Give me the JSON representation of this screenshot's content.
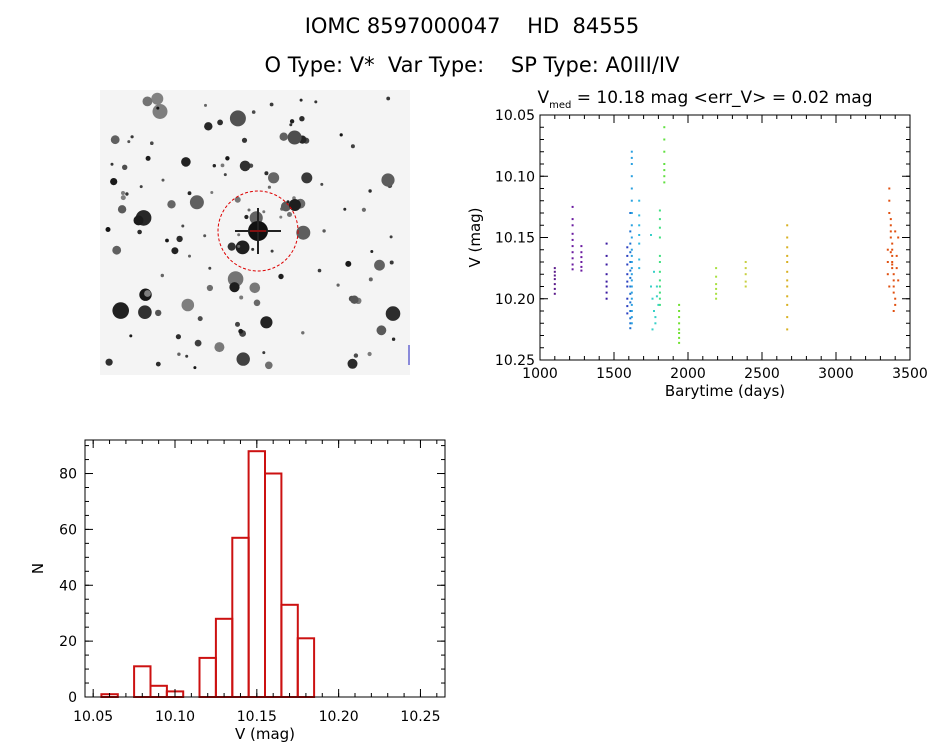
{
  "header": {
    "title_line1": "IOMC 8597000047    HD  84555",
    "title_line2": "O Type: V*  Var Type:    SP Type: A0III/IV"
  },
  "colors": {
    "hist_bar": "#cc1111",
    "aperture_circle": "#dd0000",
    "sky_background": "#ffffff"
  },
  "sky_image": {
    "type": "finder-chart",
    "description_label": "",
    "aperture": "circle"
  },
  "chart_data": [
    {
      "id": "light-curve",
      "type": "scatter",
      "title_prefix": "V",
      "title_subscript": "med",
      "title_rest": " = 10.18 mag <err_V> = 0.02 mag",
      "xlabel": "Barytime (days)",
      "ylabel": "V (mag)",
      "xlim": [
        1000,
        3500
      ],
      "ylim": [
        10.25,
        10.05
      ],
      "y_inverted": true,
      "xticks": [
        1000,
        1500,
        2000,
        2500,
        3000,
        3500
      ],
      "yticks": [
        10.05,
        10.1,
        10.15,
        10.2,
        10.25
      ],
      "ytick_labels": [
        "10.05",
        "10.10",
        "10.15",
        "10.20",
        "10.25"
      ],
      "series": [
        {
          "color": "#5a1a8a",
          "x": [
            1100,
            1100,
            1100,
            1100,
            1100,
            1100,
            1100
          ],
          "y": [
            10.175,
            10.178,
            10.181,
            10.184,
            10.188,
            10.192,
            10.196
          ]
        },
        {
          "color": "#6a1aa0",
          "x": [
            1220,
            1220,
            1220,
            1220,
            1220,
            1220,
            1220,
            1220,
            1220,
            1220
          ],
          "y": [
            10.125,
            10.135,
            10.14,
            10.147,
            10.152,
            10.157,
            10.162,
            10.167,
            10.172,
            10.176
          ]
        },
        {
          "color": "#6a1aa0",
          "x": [
            1280,
            1280,
            1280,
            1280,
            1280,
            1280
          ],
          "y": [
            10.157,
            10.162,
            10.166,
            10.17,
            10.174,
            10.177
          ]
        },
        {
          "color": "#3a1aa0",
          "x": [
            1450,
            1450,
            1450,
            1450,
            1450,
            1450,
            1450,
            1450
          ],
          "y": [
            10.155,
            10.165,
            10.172,
            10.18,
            10.186,
            10.19,
            10.195,
            10.2
          ]
        },
        {
          "color": "#2a40c0",
          "x": [
            1590,
            1590,
            1590,
            1590,
            1590,
            1590,
            1590,
            1590,
            1590
          ],
          "y": [
            10.158,
            10.165,
            10.172,
            10.18,
            10.186,
            10.19,
            10.2,
            10.206,
            10.212
          ]
        },
        {
          "color": "#1a70d0",
          "x": [
            1610,
            1610,
            1610,
            1610,
            1610,
            1610,
            1610,
            1610,
            1610,
            1610,
            1610,
            1610,
            1610,
            1610
          ],
          "y": [
            10.13,
            10.145,
            10.155,
            10.162,
            10.17,
            10.177,
            10.183,
            10.19,
            10.196,
            10.203,
            10.21,
            10.216,
            10.22,
            10.224
          ]
        },
        {
          "color": "#2aa0e0",
          "x": [
            1620,
            1620,
            1620,
            1620,
            1620,
            1620,
            1620,
            1620,
            1620,
            1620,
            1620,
            1620,
            1620,
            1620,
            1620,
            1620,
            1620,
            1620,
            1620,
            1620,
            1620,
            1620
          ],
          "y": [
            10.08,
            10.085,
            10.09,
            10.1,
            10.11,
            10.12,
            10.13,
            10.14,
            10.15,
            10.16,
            10.165,
            10.17,
            10.175,
            10.18,
            10.185,
            10.19,
            10.195,
            10.2,
            10.205,
            10.21,
            10.215,
            10.22
          ]
        },
        {
          "color": "#30b8e0",
          "x": [
            1670,
            1670,
            1670,
            1670,
            1670,
            1670,
            1670
          ],
          "y": [
            10.12,
            10.132,
            10.14,
            10.148,
            10.155,
            10.168,
            10.175
          ]
        },
        {
          "color": "#38d0c8",
          "x": [
            1750,
            1750,
            1760,
            1770,
            1780,
            1780,
            1790,
            1790,
            1800,
            1760,
            1770
          ],
          "y": [
            10.148,
            10.19,
            10.2,
            10.21,
            10.215,
            10.22,
            10.198,
            10.19,
            10.205,
            10.225,
            10.178
          ]
        },
        {
          "color": "#40e080",
          "x": [
            1810,
            1810,
            1810,
            1810,
            1810,
            1810,
            1810,
            1810,
            1810,
            1810,
            1810,
            1810
          ],
          "y": [
            10.128,
            10.135,
            10.142,
            10.15,
            10.165,
            10.17,
            10.178,
            10.185,
            10.19,
            10.195,
            10.2,
            10.205
          ]
        },
        {
          "color": "#60e040",
          "x": [
            1840,
            1840,
            1840,
            1840,
            1840,
            1840,
            1840
          ],
          "y": [
            10.06,
            10.07,
            10.08,
            10.09,
            10.095,
            10.1,
            10.105
          ]
        },
        {
          "color": "#70e030",
          "x": [
            1940,
            1940,
            1940,
            1940,
            1940,
            1940,
            1940,
            1940
          ],
          "y": [
            10.205,
            10.21,
            10.215,
            10.22,
            10.225,
            10.228,
            10.232,
            10.236
          ]
        },
        {
          "color": "#a8e040",
          "x": [
            2190,
            2190,
            2190,
            2190,
            2190,
            2190
          ],
          "y": [
            10.175,
            10.182,
            10.188,
            10.192,
            10.196,
            10.2
          ]
        },
        {
          "color": "#c8d040",
          "x": [
            2390,
            2390,
            2390,
            2390,
            2390
          ],
          "y": [
            10.17,
            10.175,
            10.18,
            10.186,
            10.19
          ]
        },
        {
          "color": "#d8b020",
          "x": [
            2670,
            2670,
            2670,
            2670,
            2670,
            2670,
            2670,
            2670,
            2670,
            2670,
            2670,
            2670
          ],
          "y": [
            10.14,
            10.15,
            10.158,
            10.165,
            10.17,
            10.178,
            10.185,
            10.19,
            10.198,
            10.205,
            10.215,
            10.225
          ]
        },
        {
          "color": "#e05010",
          "x": [
            3360,
            3360,
            3360,
            3370,
            3370,
            3370,
            3370,
            3380,
            3380,
            3380,
            3380,
            3380,
            3390,
            3390,
            3390,
            3390,
            3400,
            3400,
            3400,
            3410,
            3410,
            3420,
            3420,
            3350,
            3350,
            3350,
            3360,
            3370,
            3380,
            3390
          ],
          "y": [
            10.11,
            10.12,
            10.13,
            10.135,
            10.14,
            10.145,
            10.15,
            10.155,
            10.16,
            10.165,
            10.17,
            10.175,
            10.18,
            10.185,
            10.19,
            10.195,
            10.2,
            10.145,
            10.205,
            10.165,
            10.175,
            10.15,
            10.185,
            10.16,
            10.17,
            10.18,
            10.19,
            10.162,
            10.172,
            10.21
          ]
        }
      ]
    },
    {
      "id": "histogram",
      "type": "bar",
      "xlabel": "V (mag)",
      "ylabel": "N",
      "xlim": [
        10.045,
        10.265
      ],
      "ylim": [
        0,
        92
      ],
      "xticks": [
        10.05,
        10.1,
        10.15,
        10.2,
        10.25
      ],
      "xtick_labels": [
        "10.05",
        "10.10",
        "10.15",
        "10.20",
        "10.25"
      ],
      "yticks": [
        0,
        20,
        40,
        60,
        80
      ],
      "ytick_labels": [
        "0",
        "20",
        "40",
        "60",
        "80"
      ],
      "bin_edges": [
        10.055,
        10.065,
        10.075,
        10.085,
        10.095,
        10.105,
        10.115,
        10.125,
        10.135,
        10.145,
        10.155,
        10.165,
        10.175,
        10.185,
        10.195,
        10.205,
        10.215,
        10.225,
        10.235,
        10.245
      ],
      "counts": [
        1,
        0,
        11,
        4,
        2,
        0,
        14,
        28,
        57,
        88,
        80,
        33,
        21,
        0,
        0,
        0,
        0,
        0,
        0
      ],
      "counts_note": ""
    }
  ]
}
